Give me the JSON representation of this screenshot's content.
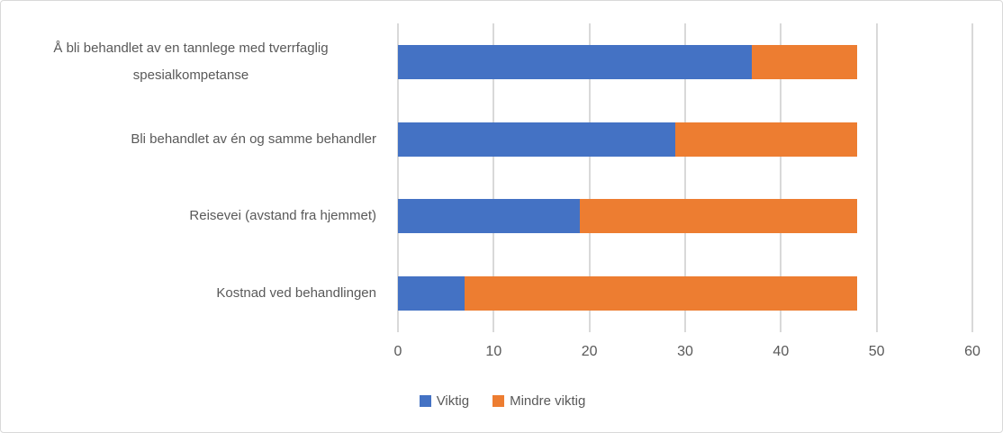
{
  "chart_data": {
    "type": "bar",
    "orientation": "horizontal",
    "stacked": true,
    "title": "",
    "xlabel": "",
    "ylabel": "",
    "categories": [
      "Å bli behandlet av en tannlege med tverrfaglig spesialkompetanse",
      "Bli behandlet av én og samme behandler",
      "Reisevei (avstand fra hjemmet)",
      "Kostnad ved behandlingen"
    ],
    "series": [
      {
        "name": "Viktig",
        "color": "#4472C4",
        "values": [
          37,
          29,
          19,
          7
        ]
      },
      {
        "name": "Mindre viktig",
        "color": "#ED7D31",
        "values": [
          11,
          19,
          29,
          41
        ]
      }
    ],
    "totals": [
      48,
      48,
      48,
      48
    ],
    "xlim": [
      0,
      60
    ],
    "xticks": [
      0,
      10,
      20,
      30,
      40,
      50,
      60
    ],
    "grid": "vertical",
    "legend_position": "bottom-center",
    "colors": {
      "gridline": "#D9D9D9",
      "axis_text": "#595959",
      "border": "#D9D9D9",
      "background": "#FFFFFF"
    }
  }
}
